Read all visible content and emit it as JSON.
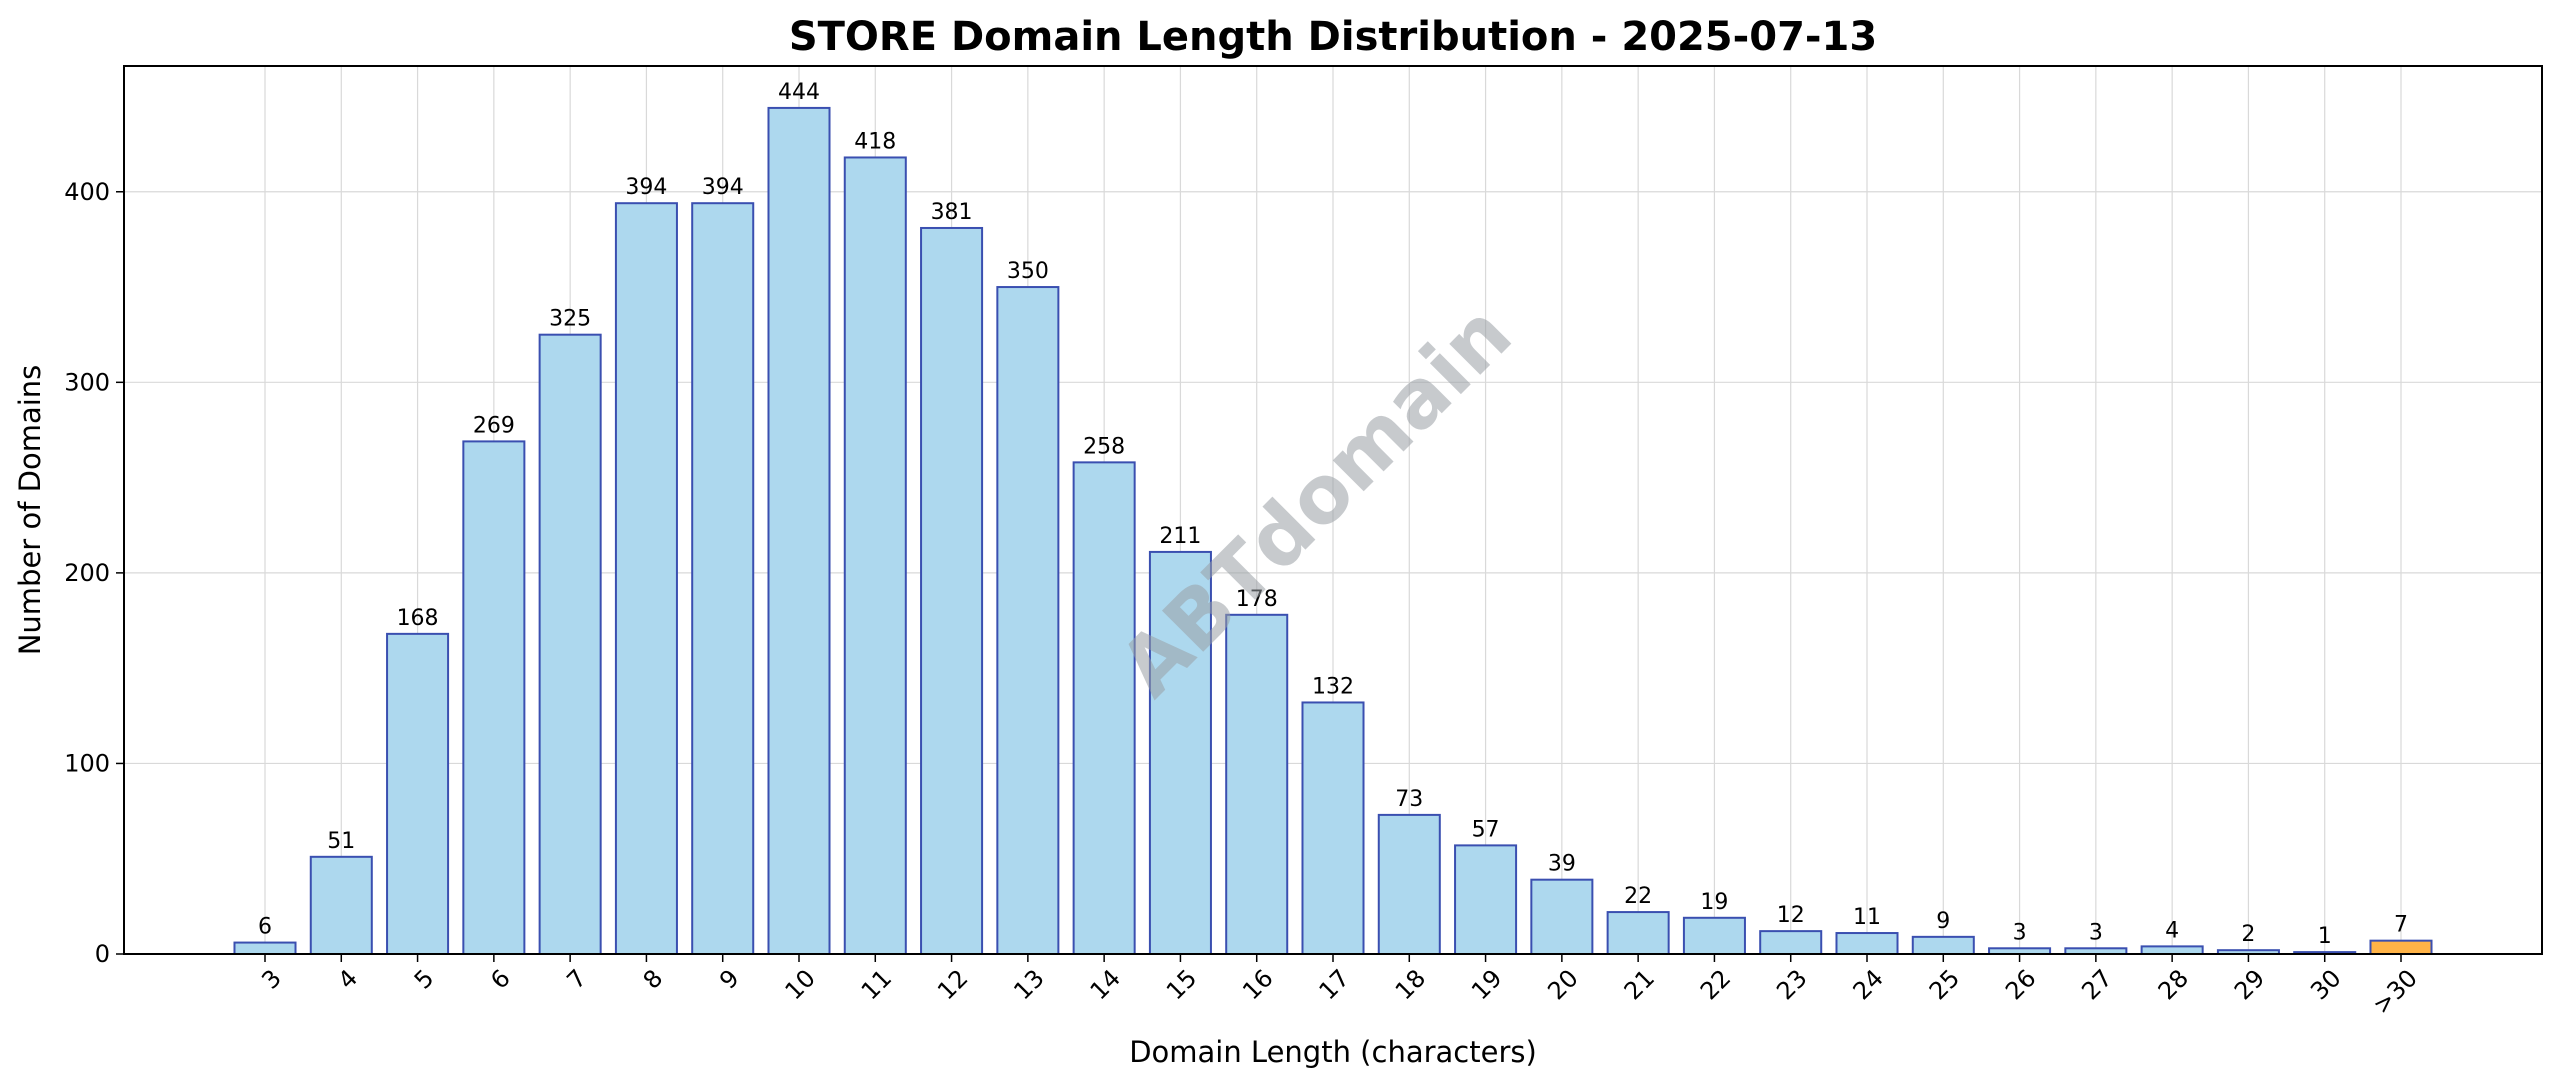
{
  "chart_data": {
    "type": "bar",
    "title": "STORE Domain Length Distribution - 2025-07-13",
    "xlabel": "Domain Length (characters)",
    "ylabel": "Number of Domains",
    "categories": [
      "3",
      "4",
      "5",
      "6",
      "7",
      "8",
      "9",
      "10",
      "11",
      "12",
      "13",
      "14",
      "15",
      "16",
      "17",
      "18",
      "19",
      "20",
      "21",
      "22",
      "23",
      "24",
      "25",
      "26",
      "27",
      "28",
      "29",
      "30",
      ">30"
    ],
    "values": [
      6,
      51,
      168,
      269,
      325,
      394,
      394,
      444,
      418,
      381,
      350,
      258,
      211,
      178,
      132,
      73,
      57,
      39,
      22,
      19,
      12,
      11,
      9,
      3,
      3,
      4,
      2,
      1,
      7
    ],
    "ylim": [
      0,
      466
    ],
    "yticks": [
      0,
      100,
      200,
      300,
      400
    ],
    "grid": true,
    "bar_color": "#add8ee",
    "bar_edge_color": "#3a4fb0",
    "highlight_color": "#ffb347",
    "highlight_category": ">30",
    "watermark": "ABTdomain"
  }
}
